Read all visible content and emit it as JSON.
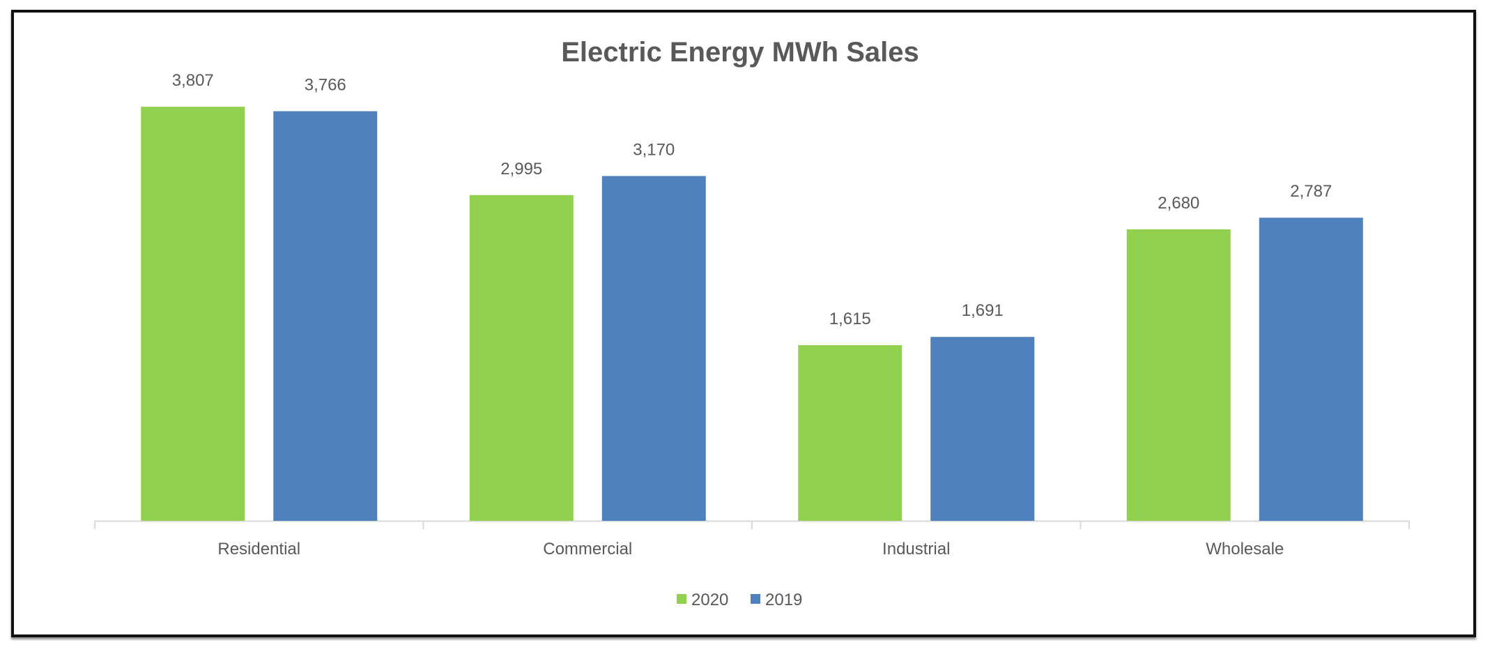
{
  "chart_data": {
    "type": "bar",
    "title": "Electric Energy MWh Sales",
    "categories": [
      "Residential",
      "Commercial",
      "Industrial",
      "Wholesale"
    ],
    "series": [
      {
        "name": "2020",
        "color": "#92D050",
        "values": [
          3807,
          2995,
          1615,
          2680
        ],
        "labels": [
          "3,807",
          "2,995",
          "1,615",
          "2,680"
        ]
      },
      {
        "name": "2019",
        "color": "#4F81BD",
        "values": [
          3766,
          3170,
          1691,
          2787
        ],
        "labels": [
          "3,766",
          "3,170",
          "1,691",
          "2,787"
        ]
      }
    ],
    "xlabel": "",
    "ylabel": "",
    "ylim": [
      0,
      4000
    ],
    "grid": false,
    "legend": "bottom-center"
  }
}
